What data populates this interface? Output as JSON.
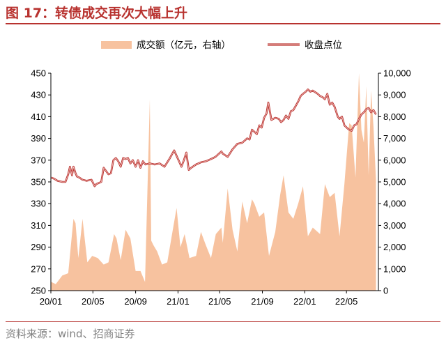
{
  "figure": {
    "title": "图 17：转债成交再次大幅上升",
    "source": "资料来源：wind、招商证券"
  },
  "colors": {
    "title": "#b8322f",
    "area": "#f7c29f",
    "line_outer": "#b8322f",
    "line_inner": "#f6c6c2"
  },
  "chart_data": {
    "type": "line",
    "title": "",
    "xlabel": "",
    "ylabel": "",
    "x_ticks": [
      "20/01",
      "20/05",
      "20/09",
      "21/01",
      "21/05",
      "21/09",
      "22/01",
      "22/05"
    ],
    "y_left": {
      "ylim": [
        250,
        450
      ],
      "ticks": [
        "250",
        "270",
        "290",
        "310",
        "330",
        "350",
        "370",
        "390",
        "410",
        "430",
        "450"
      ]
    },
    "y_right": {
      "ylim": [
        0,
        10000
      ],
      "ticks": [
        "0",
        "1,000",
        "2,000",
        "3,000",
        "4,000",
        "5,000",
        "6,000",
        "7,000",
        "8,000",
        "9,000",
        "10,000"
      ]
    },
    "legend": {
      "position": "top"
    },
    "grid": false,
    "series": [
      {
        "name": "成交额（亿元，右轴）",
        "type": "area",
        "axis": "right",
        "x": [
          "2020-01-02",
          "2020-01-15",
          "2020-02-03",
          "2020-02-20",
          "2020-03-06",
          "2020-03-12",
          "2020-03-20",
          "2020-04-01",
          "2020-04-15",
          "2020-04-29",
          "2020-05-15",
          "2020-06-01",
          "2020-06-15",
          "2020-07-01",
          "2020-07-08",
          "2020-07-20",
          "2020-08-03",
          "2020-08-17",
          "2020-09-01",
          "2020-09-15",
          "2020-09-28",
          "2020-10-12",
          "2020-10-16",
          "2020-10-22",
          "2020-11-02",
          "2020-11-16",
          "2020-12-01",
          "2020-12-15",
          "2020-12-28",
          "2021-01-08",
          "2021-01-20",
          "2021-02-03",
          "2021-02-22",
          "2021-03-08",
          "2021-03-22",
          "2021-04-06",
          "2021-04-20",
          "2021-05-06",
          "2021-05-10",
          "2021-05-24",
          "2021-06-07",
          "2021-06-21",
          "2021-07-05",
          "2021-07-19",
          "2021-08-02",
          "2021-08-09",
          "2021-08-23",
          "2021-09-06",
          "2021-09-20",
          "2021-10-08",
          "2021-10-22",
          "2021-11-01",
          "2021-11-15",
          "2021-11-29",
          "2021-12-13",
          "2021-12-27",
          "2022-01-10",
          "2022-01-24",
          "2022-02-14",
          "2022-02-28",
          "2022-03-14",
          "2022-03-28",
          "2022-04-11",
          "2022-04-25",
          "2022-05-09",
          "2022-05-16",
          "2022-05-27",
          "2022-06-06",
          "2022-06-13",
          "2022-06-20",
          "2022-06-27",
          "2022-07-04",
          "2022-07-11",
          "2022-07-18",
          "2022-07-25"
        ],
        "values": [
          400,
          300,
          700,
          800,
          3300,
          3100,
          1500,
          3300,
          1300,
          1600,
          1500,
          1200,
          1300,
          2600,
          2400,
          1400,
          2800,
          2400,
          900,
          900,
          400,
          8800,
          2300,
          2100,
          1800,
          1200,
          1300,
          2600,
          3800,
          2000,
          2600,
          1500,
          1600,
          2700,
          2100,
          1500,
          2600,
          2900,
          2200,
          4700,
          2800,
          1800,
          4100,
          3100,
          4200,
          4000,
          3400,
          3600,
          1600,
          2700,
          4400,
          5300,
          3600,
          3300,
          4000,
          4800,
          2500,
          2900,
          2600,
          4900,
          4300,
          4500,
          2500,
          4900,
          7700,
          7600,
          5200,
          10000,
          7400,
          6800,
          9400,
          5300,
          9200,
          7500,
          5100
        ]
      },
      {
        "name": "收盘点位",
        "type": "line",
        "axis": "left",
        "x": [
          "2020-01-02",
          "2020-01-10",
          "2020-01-20",
          "2020-02-03",
          "2020-02-12",
          "2020-02-20",
          "2020-02-25",
          "2020-03-02",
          "2020-03-06",
          "2020-03-12",
          "2020-03-16",
          "2020-03-23",
          "2020-04-01",
          "2020-04-13",
          "2020-04-27",
          "2020-05-06",
          "2020-05-11",
          "2020-05-18",
          "2020-05-25",
          "2020-06-01",
          "2020-06-08",
          "2020-06-15",
          "2020-06-22",
          "2020-06-29",
          "2020-07-06",
          "2020-07-13",
          "2020-07-20",
          "2020-07-27",
          "2020-08-03",
          "2020-08-10",
          "2020-08-17",
          "2020-08-24",
          "2020-09-01",
          "2020-09-08",
          "2020-09-15",
          "2020-09-22",
          "2020-09-29",
          "2020-10-12",
          "2020-10-26",
          "2020-11-09",
          "2020-11-23",
          "2020-12-07",
          "2020-12-21",
          "2021-01-04",
          "2021-01-11",
          "2021-01-18",
          "2021-01-25",
          "2021-02-01",
          "2021-02-08",
          "2021-02-22",
          "2021-03-08",
          "2021-03-22",
          "2021-04-06",
          "2021-04-19",
          "2021-05-06",
          "2021-05-10",
          "2021-05-24",
          "2021-06-07",
          "2021-06-21",
          "2021-07-05",
          "2021-07-19",
          "2021-07-26",
          "2021-08-02",
          "2021-08-09",
          "2021-08-16",
          "2021-08-23",
          "2021-08-30",
          "2021-09-06",
          "2021-09-13",
          "2021-09-18",
          "2021-09-27",
          "2021-10-08",
          "2021-10-18",
          "2021-10-25",
          "2021-11-01",
          "2021-11-08",
          "2021-11-15",
          "2021-11-22",
          "2021-11-29",
          "2021-12-06",
          "2021-12-13",
          "2021-12-20",
          "2021-12-27",
          "2022-01-04",
          "2022-01-10",
          "2022-01-17",
          "2022-01-24",
          "2022-02-07",
          "2022-02-14",
          "2022-02-21",
          "2022-02-28",
          "2022-03-07",
          "2022-03-14",
          "2022-03-21",
          "2022-03-28",
          "2022-04-06",
          "2022-04-11",
          "2022-04-18",
          "2022-04-25",
          "2022-05-05",
          "2022-05-09",
          "2022-05-16",
          "2022-05-23",
          "2022-05-30",
          "2022-06-06",
          "2022-06-13",
          "2022-06-20",
          "2022-06-27",
          "2022-07-04",
          "2022-07-11",
          "2022-07-18",
          "2022-07-25"
        ],
        "values": [
          354,
          353,
          351,
          350,
          350,
          357,
          364,
          356,
          364,
          358,
          355,
          354,
          352,
          351,
          352,
          346,
          348,
          349,
          350,
          363,
          360,
          357,
          358,
          370,
          372,
          369,
          364,
          372,
          371,
          372,
          367,
          370,
          364,
          370,
          363,
          369,
          366,
          367,
          366,
          367,
          364,
          371,
          379,
          369,
          364,
          370,
          377,
          361,
          363,
          366,
          368,
          369,
          371,
          373,
          378,
          376,
          373,
          380,
          385,
          386,
          390,
          389,
          398,
          396,
          394,
          402,
          400,
          409,
          413,
          423,
          407,
          409,
          408,
          405,
          407,
          411,
          408,
          415,
          416,
          420,
          424,
          429,
          431,
          433,
          435,
          433,
          434,
          431,
          429,
          428,
          426,
          431,
          421,
          423,
          419,
          410,
          408,
          410,
          402,
          399,
          398,
          397,
          402,
          403,
          408,
          412,
          414,
          417,
          418,
          414,
          416,
          412
        ]
      }
    ]
  }
}
